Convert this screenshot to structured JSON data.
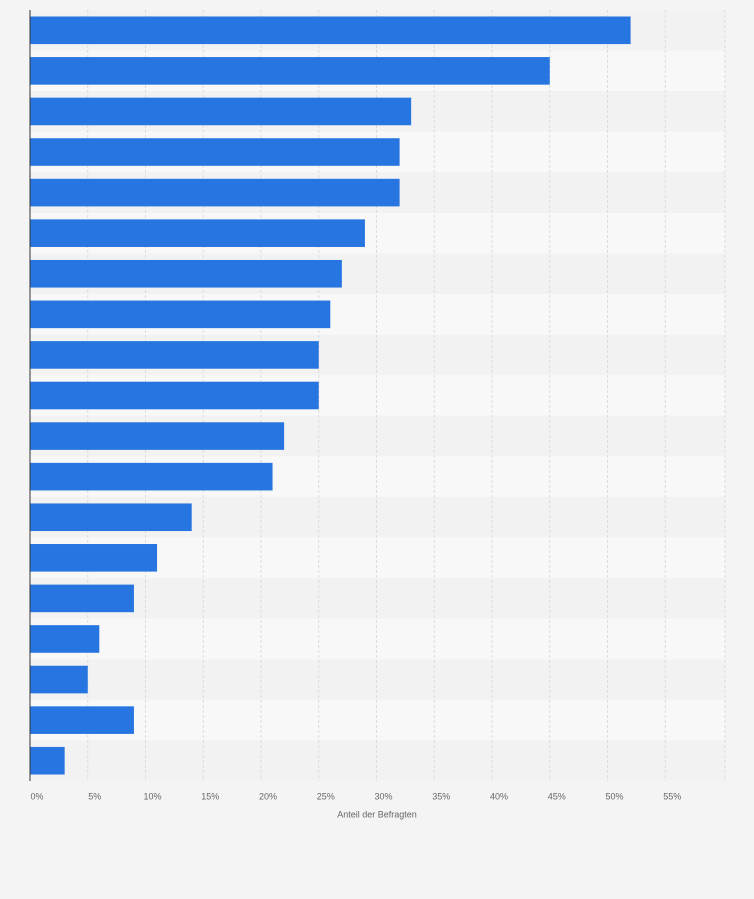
{
  "chart_data": {
    "type": "bar",
    "orientation": "horizontal",
    "xlabel": "Anteil der Befragten",
    "categories": [
      null,
      null,
      null,
      null,
      null,
      null,
      null,
      null,
      null,
      null,
      null,
      null,
      null,
      null,
      null,
      null,
      null,
      null,
      null
    ],
    "values": [
      52,
      45,
      33,
      32,
      32,
      29,
      27,
      26,
      25,
      25,
      22,
      21,
      14,
      11,
      9,
      6,
      5,
      9,
      3
    ],
    "color": "#2775e0",
    "xlim": [
      0,
      60
    ],
    "xticks": [
      {
        "value": 0,
        "label": "0%"
      },
      {
        "value": 5,
        "label": "5%"
      },
      {
        "value": 10,
        "label": "10%"
      },
      {
        "value": 15,
        "label": "15%"
      },
      {
        "value": 20,
        "label": "20%"
      },
      {
        "value": 25,
        "label": "25%"
      },
      {
        "value": 30,
        "label": "30%"
      },
      {
        "value": 35,
        "label": "35%"
      },
      {
        "value": 40,
        "label": "40%"
      },
      {
        "value": 45,
        "label": "45%"
      },
      {
        "value": 50,
        "label": "50%"
      },
      {
        "value": 55,
        "label": "55%"
      }
    ],
    "grid": true
  }
}
